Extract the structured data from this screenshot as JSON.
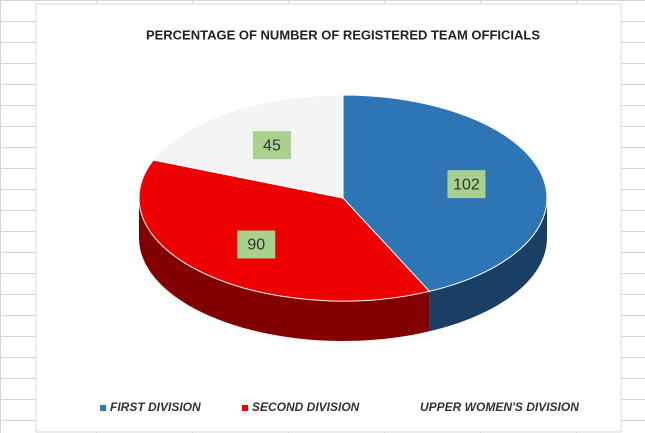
{
  "chart_data": {
    "type": "pie",
    "title": "PERCENTAGE OF NUMBER OF REGISTERED TEAM OFFICIALS",
    "categories": [
      "FIRST DIVISION",
      "SECOND DIVISION",
      "UPPER WOMEN'S DIVISION"
    ],
    "values": [
      102,
      90,
      45
    ],
    "colors": [
      "#2e75b6",
      "#ee0000",
      "#f4f4f4"
    ],
    "legend": "bottom"
  }
}
